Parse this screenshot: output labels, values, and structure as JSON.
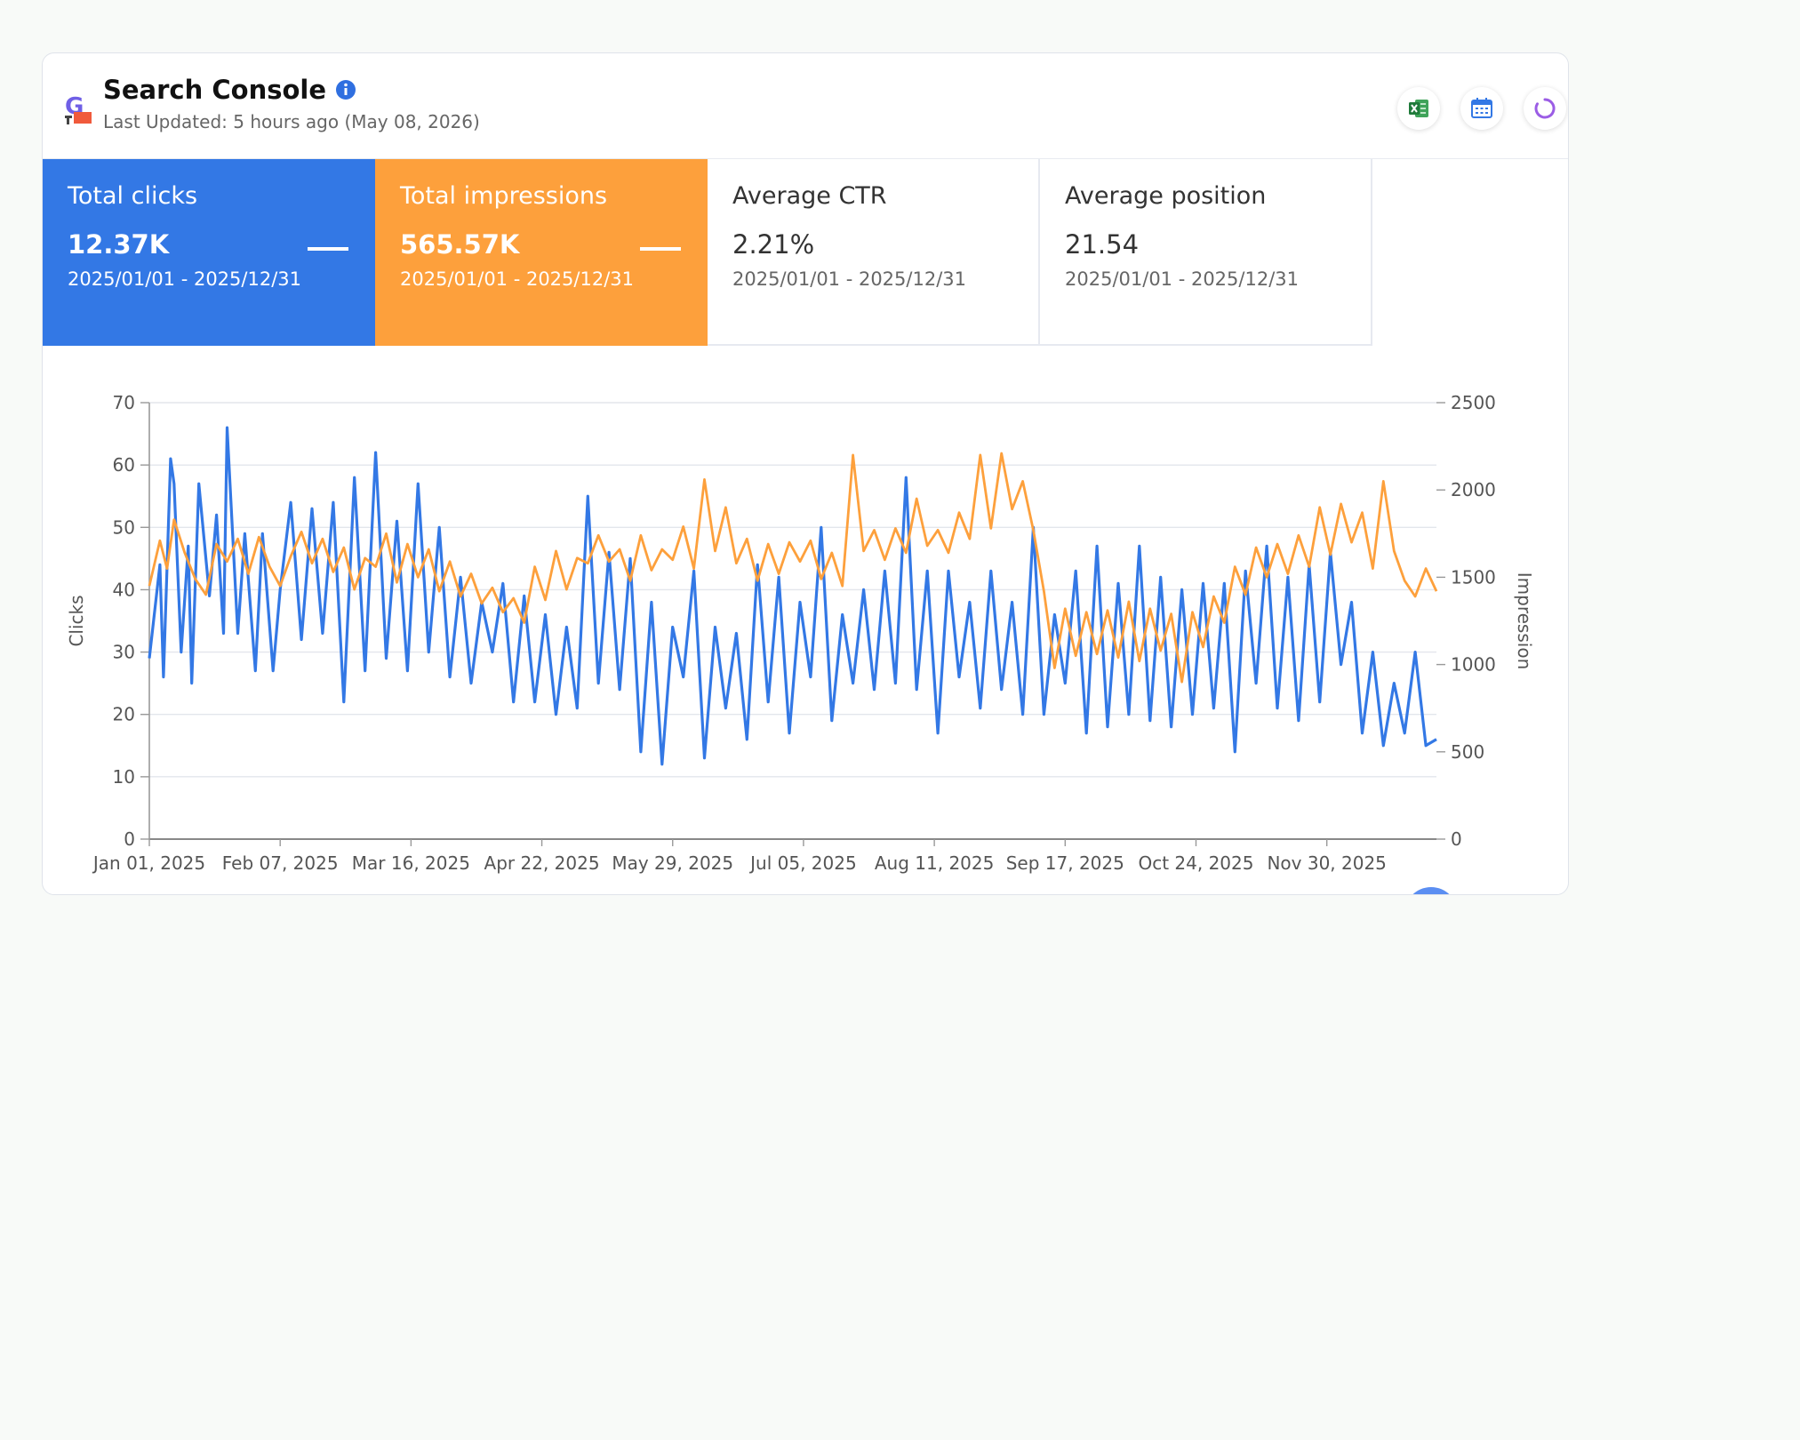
{
  "header": {
    "title": "Search Console",
    "subtitle": "Last Updated: 5 hours ago (May 08, 2026)",
    "icons": [
      "search-console-logo",
      "info-icon",
      "excel-icon",
      "calendar-icon",
      "refresh-icon"
    ]
  },
  "tiles": [
    {
      "label": "Total clicks",
      "value": "12.37K",
      "range": "2025/01/01 - 2025/12/31",
      "color": "#3378e5"
    },
    {
      "label": "Total impressions",
      "value": "565.57K",
      "range": "2025/01/01 - 2025/12/31",
      "color": "#fda03c"
    },
    {
      "label": "Average CTR",
      "value": "2.21%",
      "range": "2025/01/01 - 2025/12/31"
    },
    {
      "label": "Average position",
      "value": "21.54",
      "range": "2025/01/01 - 2025/12/31"
    }
  ],
  "chart_data": {
    "type": "line",
    "x_start": "2025-01-01",
    "x_end": "2025-12-31",
    "x_tick_labels": [
      "Jan 01, 2025",
      "Feb 07, 2025",
      "Mar 16, 2025",
      "Apr 22, 2025",
      "May 29, 2025",
      "Jul 05, 2025",
      "Aug 11, 2025",
      "Sep 17, 2025",
      "Oct 24, 2025",
      "Nov 30, 2025"
    ],
    "y_left": {
      "label": "Clicks",
      "range": [
        0,
        70
      ],
      "ticks": [
        "0",
        "10",
        "20",
        "30",
        "40",
        "50",
        "60",
        "70"
      ]
    },
    "y_right": {
      "label": "Impression",
      "range": [
        0,
        2500
      ],
      "ticks": [
        "0",
        "500",
        "1000",
        "1500",
        "2000",
        "2500"
      ]
    },
    "grid": true,
    "series": [
      {
        "name": "Clicks",
        "axis": "left",
        "color": "#3378e5",
        "points": [
          [
            "2025-01-01",
            29
          ],
          [
            "2025-01-04",
            44
          ],
          [
            "2025-01-05",
            26
          ],
          [
            "2025-01-07",
            61
          ],
          [
            "2025-01-08",
            57
          ],
          [
            "2025-01-10",
            30
          ],
          [
            "2025-01-12",
            47
          ],
          [
            "2025-01-13",
            25
          ],
          [
            "2025-01-15",
            57
          ],
          [
            "2025-01-18",
            39
          ],
          [
            "2025-01-20",
            52
          ],
          [
            "2025-01-22",
            33
          ],
          [
            "2025-01-23",
            66
          ],
          [
            "2025-01-26",
            33
          ],
          [
            "2025-01-28",
            49
          ],
          [
            "2025-01-31",
            27
          ],
          [
            "2025-02-02",
            49
          ],
          [
            "2025-02-05",
            27
          ],
          [
            "2025-02-07",
            40
          ],
          [
            "2025-02-10",
            54
          ],
          [
            "2025-02-13",
            32
          ],
          [
            "2025-02-16",
            53
          ],
          [
            "2025-02-19",
            33
          ],
          [
            "2025-02-22",
            54
          ],
          [
            "2025-02-25",
            22
          ],
          [
            "2025-02-28",
            58
          ],
          [
            "2025-03-03",
            27
          ],
          [
            "2025-03-06",
            62
          ],
          [
            "2025-03-09",
            29
          ],
          [
            "2025-03-12",
            51
          ],
          [
            "2025-03-15",
            27
          ],
          [
            "2025-03-18",
            57
          ],
          [
            "2025-03-21",
            30
          ],
          [
            "2025-03-24",
            50
          ],
          [
            "2025-03-27",
            26
          ],
          [
            "2025-03-30",
            42
          ],
          [
            "2025-04-02",
            25
          ],
          [
            "2025-04-05",
            38
          ],
          [
            "2025-04-08",
            30
          ],
          [
            "2025-04-11",
            41
          ],
          [
            "2025-04-14",
            22
          ],
          [
            "2025-04-17",
            39
          ],
          [
            "2025-04-20",
            22
          ],
          [
            "2025-04-23",
            36
          ],
          [
            "2025-04-26",
            20
          ],
          [
            "2025-04-29",
            34
          ],
          [
            "2025-05-02",
            21
          ],
          [
            "2025-05-05",
            55
          ],
          [
            "2025-05-08",
            25
          ],
          [
            "2025-05-11",
            46
          ],
          [
            "2025-05-14",
            24
          ],
          [
            "2025-05-17",
            45
          ],
          [
            "2025-05-20",
            14
          ],
          [
            "2025-05-23",
            38
          ],
          [
            "2025-05-26",
            12
          ],
          [
            "2025-05-29",
            34
          ],
          [
            "2025-06-01",
            26
          ],
          [
            "2025-06-04",
            43
          ],
          [
            "2025-06-07",
            13
          ],
          [
            "2025-06-10",
            34
          ],
          [
            "2025-06-13",
            21
          ],
          [
            "2025-06-16",
            33
          ],
          [
            "2025-06-19",
            16
          ],
          [
            "2025-06-22",
            44
          ],
          [
            "2025-06-25",
            22
          ],
          [
            "2025-06-28",
            42
          ],
          [
            "2025-07-01",
            17
          ],
          [
            "2025-07-04",
            38
          ],
          [
            "2025-07-07",
            26
          ],
          [
            "2025-07-10",
            50
          ],
          [
            "2025-07-13",
            19
          ],
          [
            "2025-07-16",
            36
          ],
          [
            "2025-07-19",
            25
          ],
          [
            "2025-07-22",
            40
          ],
          [
            "2025-07-25",
            24
          ],
          [
            "2025-07-28",
            43
          ],
          [
            "2025-07-31",
            25
          ],
          [
            "2025-08-03",
            58
          ],
          [
            "2025-08-06",
            24
          ],
          [
            "2025-08-09",
            43
          ],
          [
            "2025-08-12",
            17
          ],
          [
            "2025-08-15",
            43
          ],
          [
            "2025-08-18",
            26
          ],
          [
            "2025-08-21",
            38
          ],
          [
            "2025-08-24",
            21
          ],
          [
            "2025-08-27",
            43
          ],
          [
            "2025-08-30",
            24
          ],
          [
            "2025-09-02",
            38
          ],
          [
            "2025-09-05",
            20
          ],
          [
            "2025-09-08",
            50
          ],
          [
            "2025-09-11",
            20
          ],
          [
            "2025-09-14",
            36
          ],
          [
            "2025-09-17",
            25
          ],
          [
            "2025-09-20",
            43
          ],
          [
            "2025-09-23",
            17
          ],
          [
            "2025-09-26",
            47
          ],
          [
            "2025-09-29",
            18
          ],
          [
            "2025-10-02",
            41
          ],
          [
            "2025-10-05",
            20
          ],
          [
            "2025-10-08",
            47
          ],
          [
            "2025-10-11",
            19
          ],
          [
            "2025-10-14",
            42
          ],
          [
            "2025-10-17",
            18
          ],
          [
            "2025-10-20",
            40
          ],
          [
            "2025-10-23",
            20
          ],
          [
            "2025-10-26",
            41
          ],
          [
            "2025-10-29",
            21
          ],
          [
            "2025-11-01",
            41
          ],
          [
            "2025-11-04",
            14
          ],
          [
            "2025-11-07",
            43
          ],
          [
            "2025-11-10",
            25
          ],
          [
            "2025-11-13",
            47
          ],
          [
            "2025-11-16",
            21
          ],
          [
            "2025-11-19",
            42
          ],
          [
            "2025-11-22",
            19
          ],
          [
            "2025-11-25",
            44
          ],
          [
            "2025-11-28",
            22
          ],
          [
            "2025-12-01",
            46
          ],
          [
            "2025-12-04",
            28
          ],
          [
            "2025-12-07",
            38
          ],
          [
            "2025-12-10",
            17
          ],
          [
            "2025-12-13",
            30
          ],
          [
            "2025-12-16",
            15
          ],
          [
            "2025-12-19",
            25
          ],
          [
            "2025-12-22",
            17
          ],
          [
            "2025-12-25",
            30
          ],
          [
            "2025-12-28",
            15
          ],
          [
            "2025-12-31",
            16
          ]
        ]
      },
      {
        "name": "Impression",
        "axis": "right",
        "color": "#fda03c",
        "points": [
          [
            "2025-01-01",
            1450
          ],
          [
            "2025-01-04",
            1710
          ],
          [
            "2025-01-06",
            1550
          ],
          [
            "2025-01-08",
            1830
          ],
          [
            "2025-01-11",
            1640
          ],
          [
            "2025-01-14",
            1490
          ],
          [
            "2025-01-17",
            1400
          ],
          [
            "2025-01-20",
            1690
          ],
          [
            "2025-01-23",
            1590
          ],
          [
            "2025-01-26",
            1720
          ],
          [
            "2025-01-29",
            1520
          ],
          [
            "2025-02-01",
            1730
          ],
          [
            "2025-02-04",
            1560
          ],
          [
            "2025-02-07",
            1450
          ],
          [
            "2025-02-10",
            1620
          ],
          [
            "2025-02-13",
            1760
          ],
          [
            "2025-02-16",
            1580
          ],
          [
            "2025-02-19",
            1720
          ],
          [
            "2025-02-22",
            1530
          ],
          [
            "2025-02-25",
            1670
          ],
          [
            "2025-02-28",
            1430
          ],
          [
            "2025-03-03",
            1610
          ],
          [
            "2025-03-06",
            1560
          ],
          [
            "2025-03-09",
            1750
          ],
          [
            "2025-03-12",
            1470
          ],
          [
            "2025-03-15",
            1690
          ],
          [
            "2025-03-18",
            1500
          ],
          [
            "2025-03-21",
            1660
          ],
          [
            "2025-03-24",
            1420
          ],
          [
            "2025-03-27",
            1590
          ],
          [
            "2025-03-30",
            1390
          ],
          [
            "2025-04-02",
            1520
          ],
          [
            "2025-04-05",
            1350
          ],
          [
            "2025-04-08",
            1440
          ],
          [
            "2025-04-11",
            1300
          ],
          [
            "2025-04-14",
            1380
          ],
          [
            "2025-04-17",
            1240
          ],
          [
            "2025-04-20",
            1560
          ],
          [
            "2025-04-23",
            1370
          ],
          [
            "2025-04-26",
            1650
          ],
          [
            "2025-04-29",
            1430
          ],
          [
            "2025-05-02",
            1610
          ],
          [
            "2025-05-05",
            1580
          ],
          [
            "2025-05-08",
            1740
          ],
          [
            "2025-05-11",
            1590
          ],
          [
            "2025-05-14",
            1660
          ],
          [
            "2025-05-17",
            1480
          ],
          [
            "2025-05-20",
            1740
          ],
          [
            "2025-05-23",
            1540
          ],
          [
            "2025-05-26",
            1660
          ],
          [
            "2025-05-29",
            1600
          ],
          [
            "2025-06-01",
            1790
          ],
          [
            "2025-06-04",
            1550
          ],
          [
            "2025-06-07",
            2060
          ],
          [
            "2025-06-10",
            1650
          ],
          [
            "2025-06-13",
            1900
          ],
          [
            "2025-06-16",
            1580
          ],
          [
            "2025-06-19",
            1720
          ],
          [
            "2025-06-22",
            1480
          ],
          [
            "2025-06-25",
            1690
          ],
          [
            "2025-06-28",
            1520
          ],
          [
            "2025-07-01",
            1700
          ],
          [
            "2025-07-04",
            1590
          ],
          [
            "2025-07-07",
            1710
          ],
          [
            "2025-07-10",
            1490
          ],
          [
            "2025-07-13",
            1640
          ],
          [
            "2025-07-16",
            1450
          ],
          [
            "2025-07-19",
            2200
          ],
          [
            "2025-07-22",
            1650
          ],
          [
            "2025-07-25",
            1770
          ],
          [
            "2025-07-28",
            1600
          ],
          [
            "2025-07-31",
            1780
          ],
          [
            "2025-08-03",
            1640
          ],
          [
            "2025-08-06",
            1950
          ],
          [
            "2025-08-09",
            1680
          ],
          [
            "2025-08-12",
            1770
          ],
          [
            "2025-08-15",
            1640
          ],
          [
            "2025-08-18",
            1870
          ],
          [
            "2025-08-21",
            1720
          ],
          [
            "2025-08-24",
            2200
          ],
          [
            "2025-08-27",
            1780
          ],
          [
            "2025-08-30",
            2210
          ],
          [
            "2025-09-02",
            1890
          ],
          [
            "2025-09-05",
            2050
          ],
          [
            "2025-09-08",
            1770
          ],
          [
            "2025-09-11",
            1420
          ],
          [
            "2025-09-14",
            980
          ],
          [
            "2025-09-17",
            1320
          ],
          [
            "2025-09-20",
            1050
          ],
          [
            "2025-09-23",
            1300
          ],
          [
            "2025-09-26",
            1060
          ],
          [
            "2025-09-29",
            1310
          ],
          [
            "2025-10-02",
            1040
          ],
          [
            "2025-10-05",
            1360
          ],
          [
            "2025-10-08",
            1020
          ],
          [
            "2025-10-11",
            1320
          ],
          [
            "2025-10-14",
            1080
          ],
          [
            "2025-10-17",
            1290
          ],
          [
            "2025-10-20",
            900
          ],
          [
            "2025-10-23",
            1300
          ],
          [
            "2025-10-26",
            1100
          ],
          [
            "2025-10-29",
            1390
          ],
          [
            "2025-11-01",
            1240
          ],
          [
            "2025-11-04",
            1560
          ],
          [
            "2025-11-07",
            1400
          ],
          [
            "2025-11-10",
            1670
          ],
          [
            "2025-11-13",
            1500
          ],
          [
            "2025-11-16",
            1690
          ],
          [
            "2025-11-19",
            1520
          ],
          [
            "2025-11-22",
            1740
          ],
          [
            "2025-11-25",
            1560
          ],
          [
            "2025-11-28",
            1900
          ],
          [
            "2025-12-01",
            1630
          ],
          [
            "2025-12-04",
            1920
          ],
          [
            "2025-12-07",
            1700
          ],
          [
            "2025-12-10",
            1870
          ],
          [
            "2025-12-13",
            1550
          ],
          [
            "2025-12-16",
            2050
          ],
          [
            "2025-12-19",
            1650
          ],
          [
            "2025-12-22",
            1480
          ],
          [
            "2025-12-25",
            1390
          ],
          [
            "2025-12-28",
            1550
          ],
          [
            "2025-12-31",
            1420
          ]
        ]
      }
    ]
  }
}
